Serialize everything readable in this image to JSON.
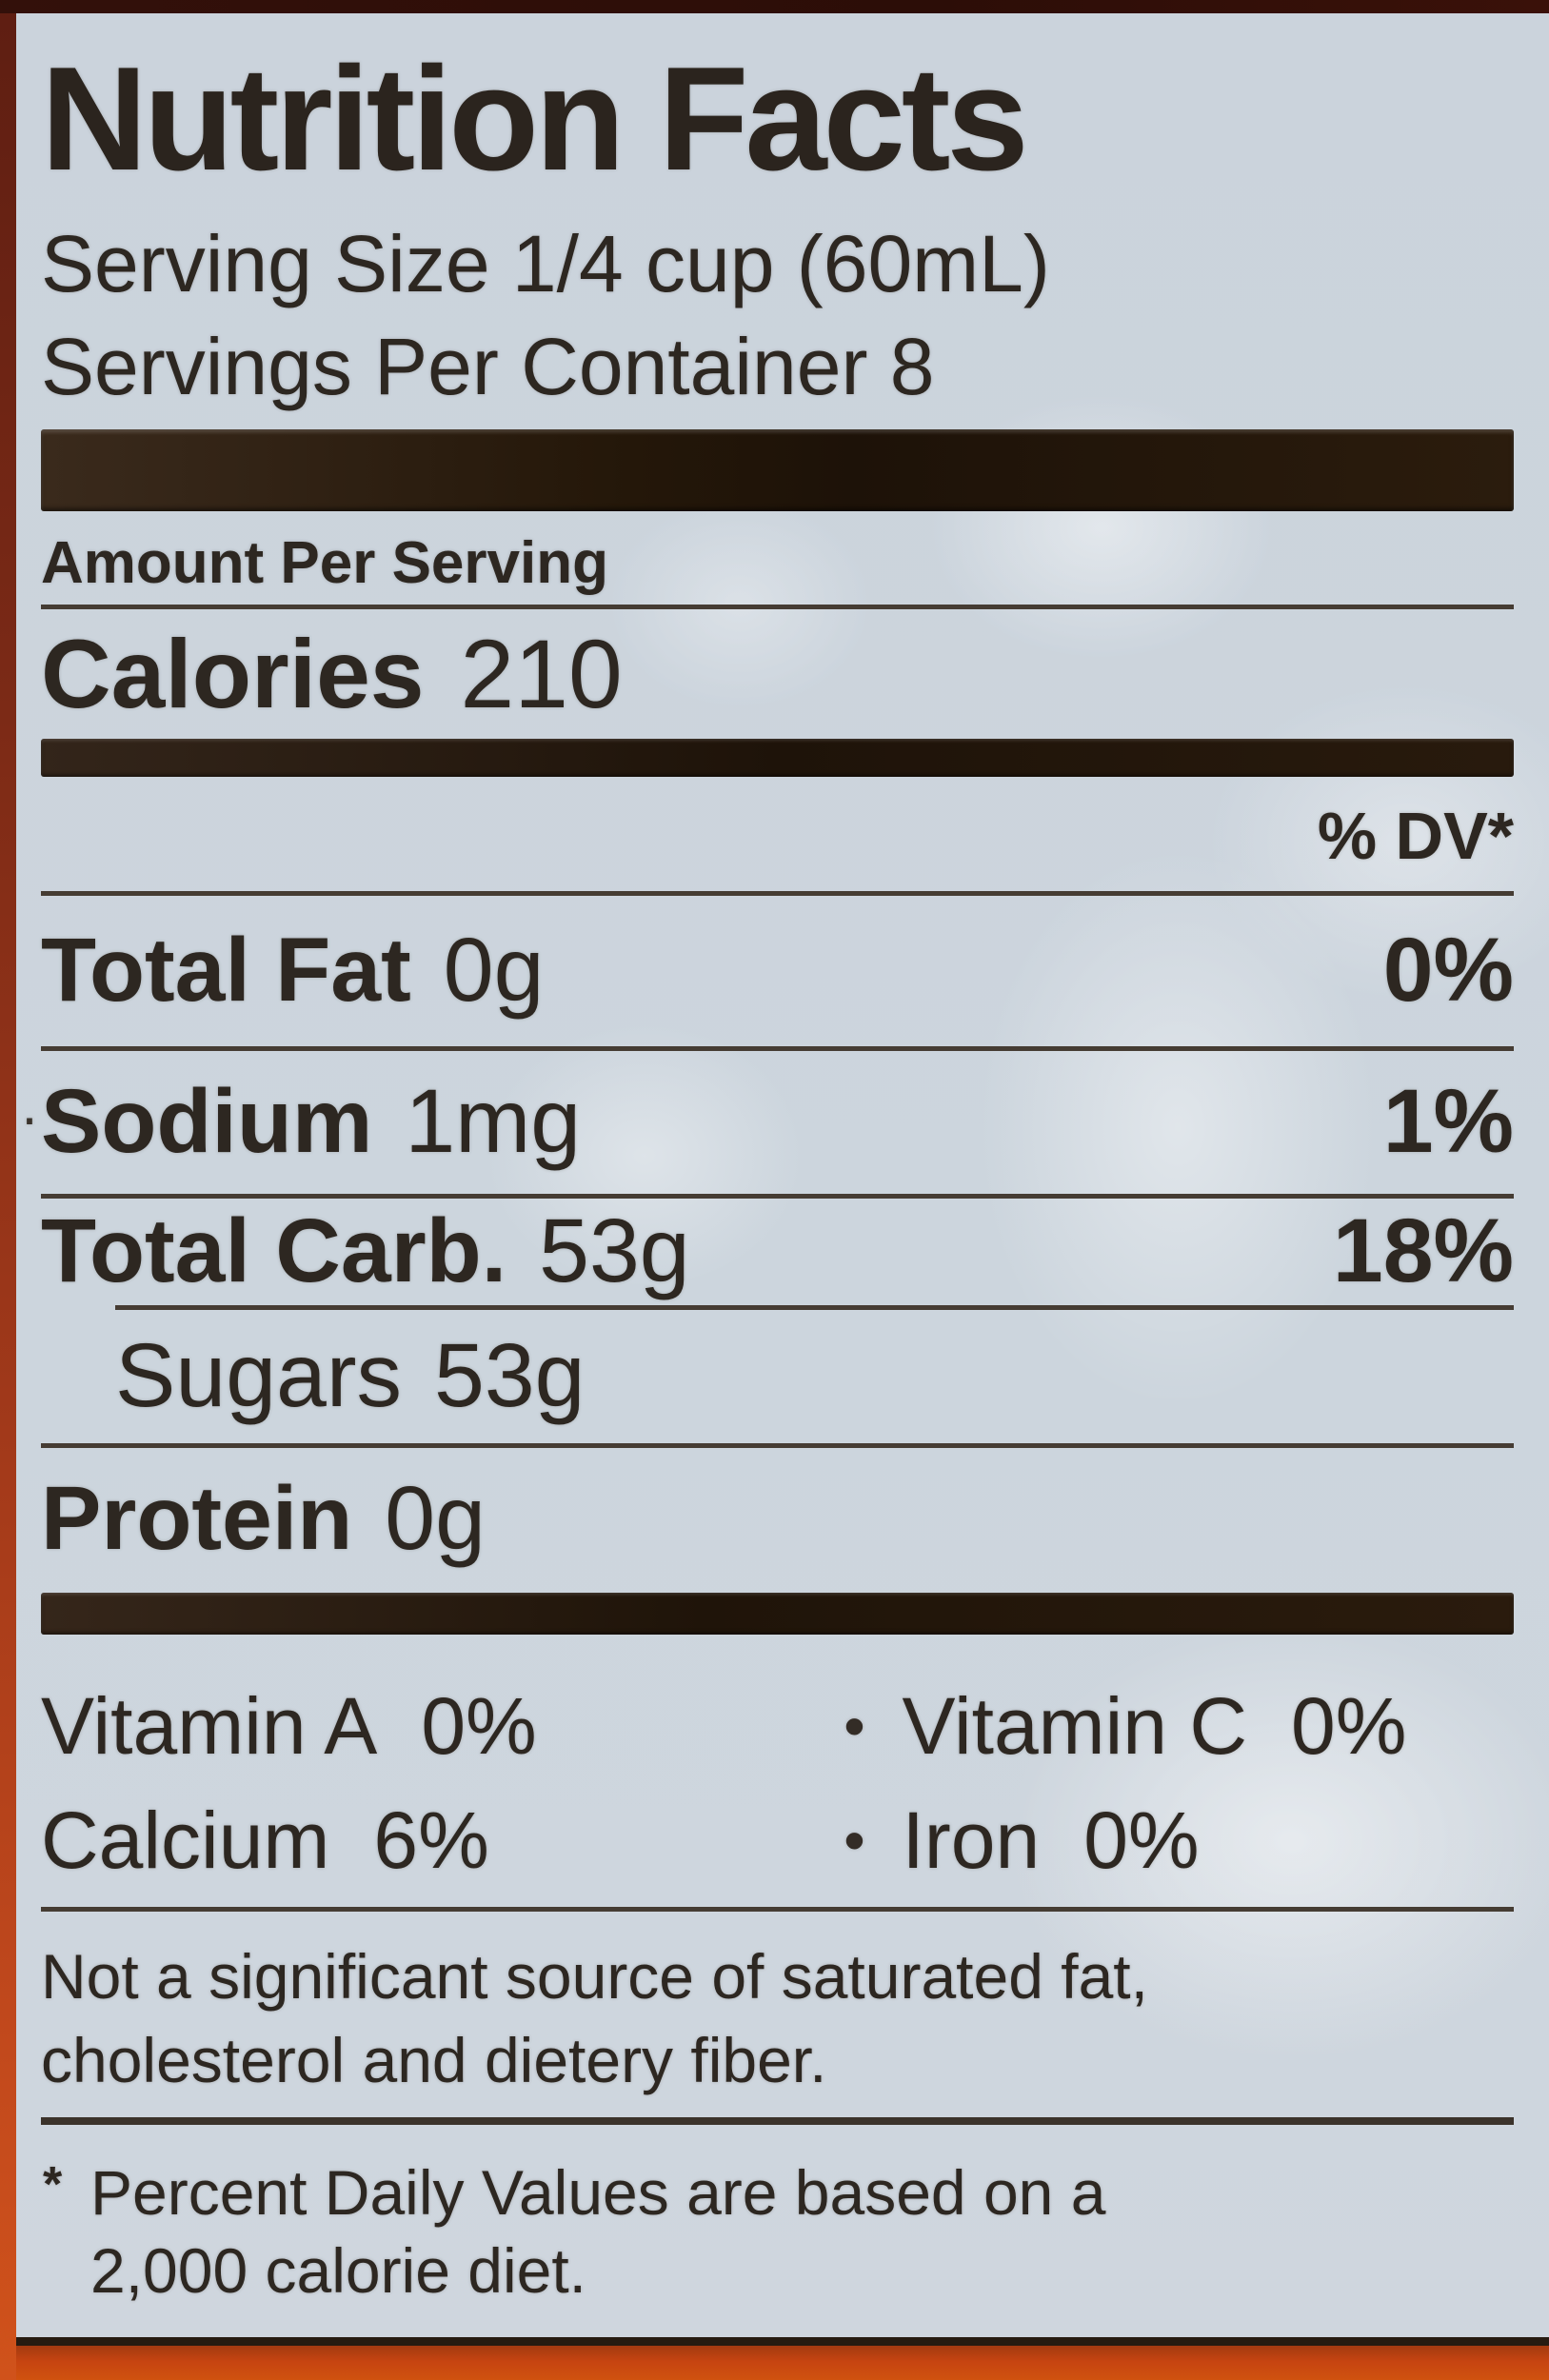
{
  "label": {
    "title": "Nutrition Facts",
    "serving_size": "Serving Size 1/4 cup (60mL)",
    "servings_per_container": "Servings Per Container 8",
    "amount_per_serving": "Amount Per Serving",
    "calories_label": "Calories",
    "calories_value": "210",
    "dv_header": "% DV*",
    "artifact_dot": "·",
    "nutrients": [
      {
        "name": "Total Fat",
        "amount": "0g",
        "dv": "0%"
      },
      {
        "name": "Sodium",
        "amount": "1mg",
        "dv": "1%"
      },
      {
        "name": "Total Carb.",
        "amount": "53g",
        "dv": "18%"
      },
      {
        "name": "Sugars",
        "amount": "53g",
        "dv": ""
      },
      {
        "name": "Protein",
        "amount": "0g",
        "dv": ""
      }
    ],
    "vitamins_bullet": "•",
    "vitamins": [
      {
        "left_name": "Vitamin A",
        "left_value": "0%",
        "right_name": "Vitamin C",
        "right_value": "0%"
      },
      {
        "left_name": "Calcium",
        "left_value": "6%",
        "right_name": "Iron",
        "right_value": "0%"
      }
    ],
    "note_line1": "Not a significant source of saturated fat,",
    "note_line2": "cholesterol and dietery fiber.",
    "footnote_marker": "*",
    "footnote_line1": "Percent Daily Values are based on a",
    "footnote_line2": "2,000 calorie diet."
  }
}
